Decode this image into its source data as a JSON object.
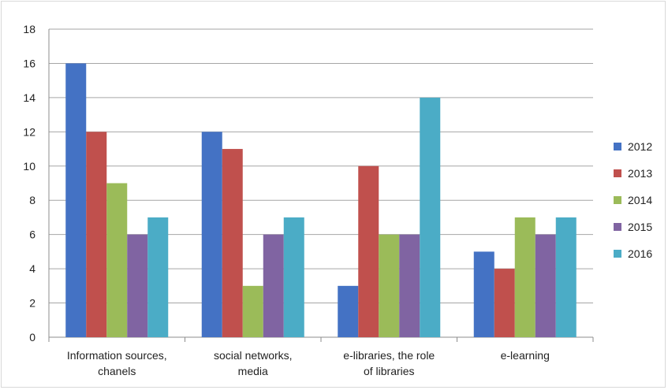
{
  "chart_data": {
    "type": "bar",
    "categories": [
      [
        "Information sources,",
        "chanels"
      ],
      [
        "social networks,",
        "media"
      ],
      [
        "e-libraries, the role",
        "of libraries"
      ],
      [
        "e-learning"
      ]
    ],
    "series": [
      {
        "name": "2012",
        "color": "#4472c4",
        "values": [
          16,
          12,
          3,
          5
        ]
      },
      {
        "name": "2013",
        "color": "#c0504d",
        "values": [
          12,
          11,
          10,
          4
        ]
      },
      {
        "name": "2014",
        "color": "#9bbb59",
        "values": [
          9,
          3,
          6,
          7
        ]
      },
      {
        "name": "2015",
        "color": "#8064a2",
        "values": [
          6,
          6,
          6,
          6
        ]
      },
      {
        "name": "2016",
        "color": "#4bacc6",
        "values": [
          7,
          7,
          14,
          7
        ]
      }
    ],
    "ylim": [
      0,
      18
    ],
    "yticks": [
      0,
      2,
      4,
      6,
      8,
      10,
      12,
      14,
      16,
      18
    ],
    "grid": true,
    "legend_position": "right"
  }
}
